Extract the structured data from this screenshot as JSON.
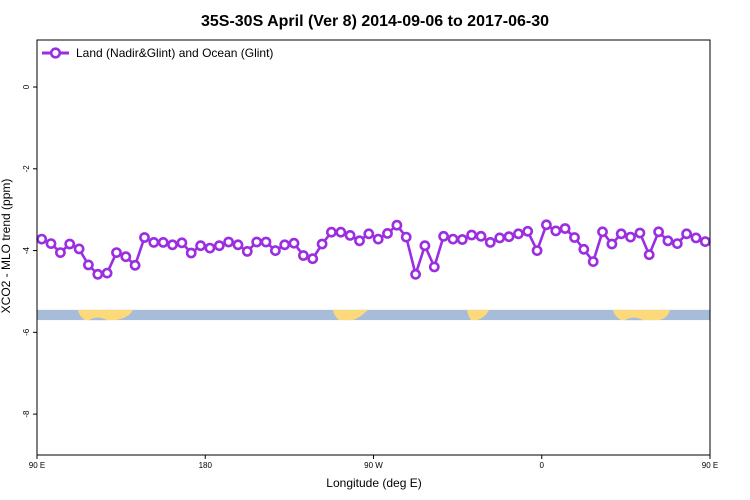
{
  "chart_data": {
    "type": "line",
    "title": "35S-30S April (Ver 8)   2014-09-06 to 2017-06-30",
    "xlabel": "Longitude (deg E)",
    "ylabel": "XCO2 - MLO trend (ppm)",
    "xlim": [
      90,
      450
    ],
    "ylim": [
      -9.0,
      1.15
    ],
    "x_ticks": [
      {
        "value": 90,
        "label": "90 E"
      },
      {
        "value": 180,
        "label": "180"
      },
      {
        "value": 270,
        "label": "90 W"
      },
      {
        "value": 360,
        "label": "0"
      },
      {
        "value": 450,
        "label": "90 E"
      }
    ],
    "y_ticks": [
      {
        "value": 0,
        "label": "0"
      },
      {
        "value": -2,
        "label": "-2"
      },
      {
        "value": -4,
        "label": "-4"
      },
      {
        "value": -6,
        "label": "-6"
      },
      {
        "value": -8,
        "label": "-8"
      }
    ],
    "legend": {
      "position": "top-left"
    },
    "grid": false,
    "series": [
      {
        "name": "Land (Nadir&Glint) and Ocean (Glint)",
        "color": "#9a2ee0",
        "x": [
          92.5,
          97.5,
          102.5,
          107.5,
          112.5,
          117.5,
          122.5,
          127.5,
          132.5,
          137.5,
          142.5,
          147.5,
          152.5,
          157.5,
          162.5,
          167.5,
          172.5,
          177.5,
          182.5,
          187.5,
          192.5,
          197.5,
          202.5,
          207.5,
          212.5,
          217.5,
          222.5,
          227.5,
          232.5,
          237.5,
          242.5,
          247.5,
          252.5,
          257.5,
          262.5,
          267.5,
          272.5,
          277.5,
          282.5,
          287.5,
          292.5,
          297.5,
          302.5,
          307.5,
          312.5,
          317.5,
          322.5,
          327.5,
          332.5,
          337.5,
          342.5,
          347.5,
          352.5,
          357.5,
          362.5,
          367.5,
          372.5,
          377.5,
          382.5,
          387.5,
          392.5,
          397.5,
          402.5,
          407.5,
          412.5,
          417.5,
          422.5,
          427.5,
          432.5,
          437.5,
          442.5,
          447.5
        ],
        "y": [
          -3.72,
          -3.83,
          -4.05,
          -3.84,
          -3.96,
          -4.35,
          -4.58,
          -4.55,
          -4.05,
          -4.15,
          -4.36,
          -3.68,
          -3.8,
          -3.8,
          -3.86,
          -3.81,
          -4.06,
          -3.88,
          -3.94,
          -3.88,
          -3.79,
          -3.86,
          -4.02,
          -3.79,
          -3.79,
          -4.0,
          -3.86,
          -3.82,
          -4.12,
          -4.2,
          -3.84,
          -3.55,
          -3.55,
          -3.63,
          -3.76,
          -3.59,
          -3.72,
          -3.58,
          -3.38,
          -3.67,
          -4.58,
          -3.88,
          -4.4,
          -3.65,
          -3.72,
          -3.73,
          -3.62,
          -3.65,
          -3.8,
          -3.69,
          -3.66,
          -3.59,
          -3.53,
          -4.0,
          -3.37,
          -3.52,
          -3.46,
          -3.68,
          -3.97,
          -4.27,
          -3.54,
          -3.84,
          -3.59,
          -3.67,
          -3.57,
          -4.1,
          -3.54,
          -3.76,
          -3.83,
          -3.59,
          -3.69,
          -3.78
        ]
      }
    ],
    "land_ocean_strip": {
      "y_range": [
        -5.7,
        -5.45
      ],
      "ocean_color": "#a6bcd8",
      "land_color": "#fcd97a"
    }
  }
}
